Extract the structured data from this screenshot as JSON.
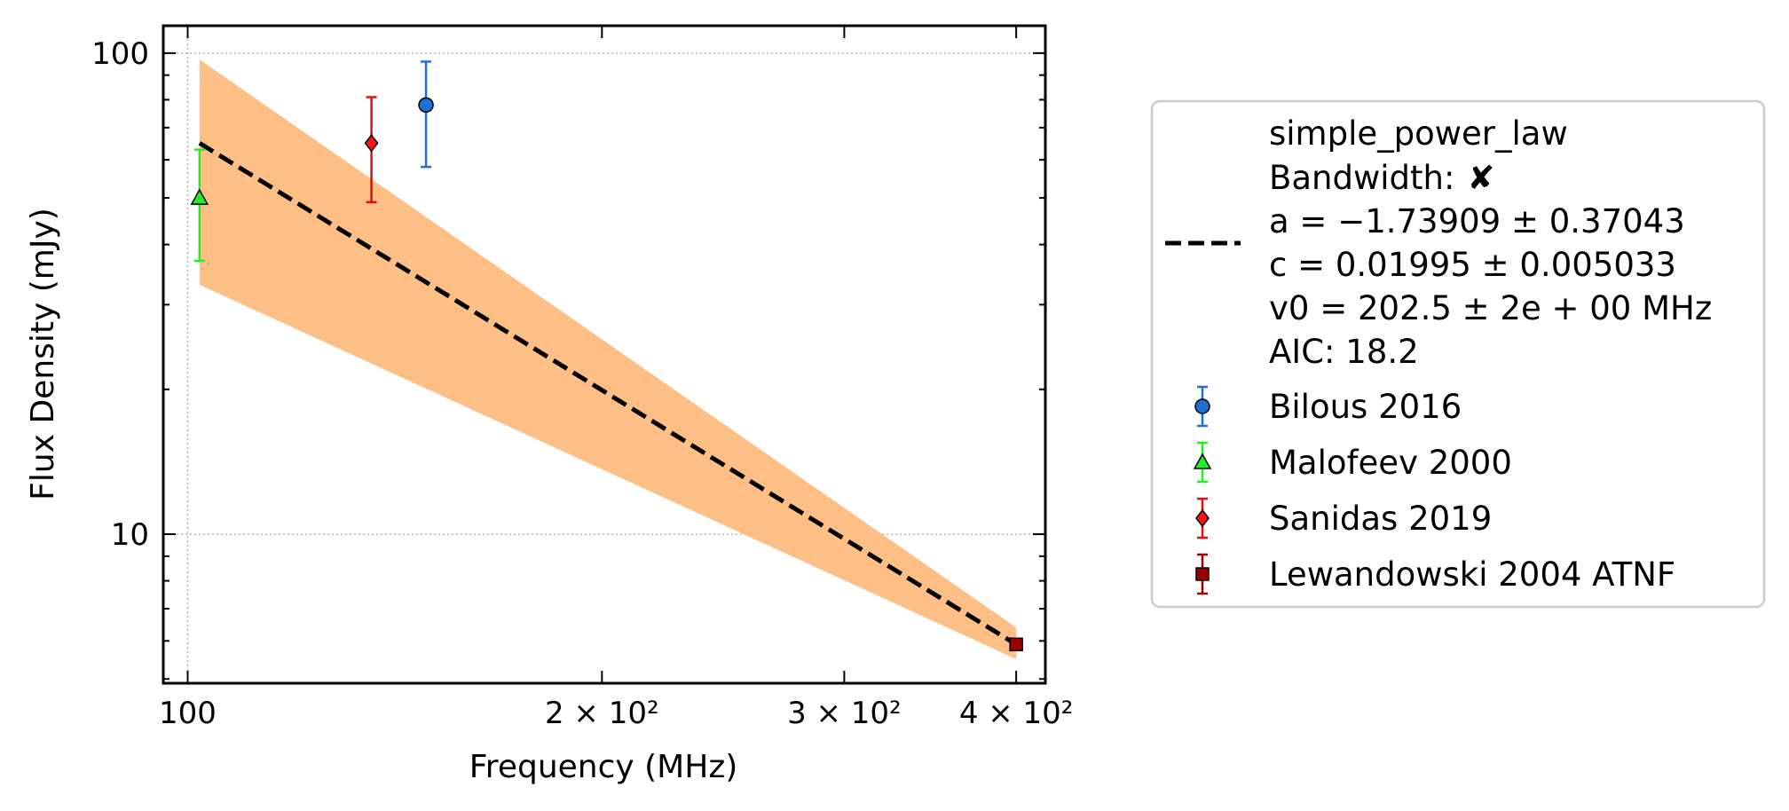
{
  "chart_data": {
    "type": "scatter",
    "xscale": "log",
    "yscale": "log",
    "xlim": [
      96,
      420
    ],
    "ylim": [
      4.9,
      114
    ],
    "xlabel": "Frequency (MHz)",
    "ylabel": "Flux Density (mJy)",
    "grid": true,
    "legend_position": "outside-right",
    "x_ticks": [
      {
        "value": 100,
        "label": "100"
      },
      {
        "value": 200,
        "label": "2 × 10²"
      },
      {
        "value": 300,
        "label": "3 × 10²"
      },
      {
        "value": 400,
        "label": "4 × 10²"
      }
    ],
    "y_ticks": [
      {
        "value": 10,
        "label": "10"
      },
      {
        "value": 100,
        "label": "100"
      }
    ],
    "fit": {
      "model": "simple_power_law",
      "bandwidth_label": "Bandwidth:",
      "bandwidth_mark": "✘",
      "params": [
        "a = −1.73909 ± 0.37043",
        "c = 0.01995 ± 0.005033",
        "v0 = 202.5 ± 2e + 00 MHz",
        "AIC: 18.2"
      ],
      "line_color": "#000000",
      "band_color": "#fdbf85",
      "line": [
        [
          102,
          65
        ],
        [
          400,
          5.9
        ]
      ],
      "band_upper": [
        [
          102,
          97
        ],
        [
          400,
          6.4
        ]
      ],
      "band_lower": [
        [
          102,
          33
        ],
        [
          400,
          5.5
        ]
      ]
    },
    "series": [
      {
        "name": "Bilous 2016",
        "marker": "circle",
        "color": "#1f6fd6",
        "errcolor": "#1f6fd6",
        "points": [
          {
            "x": 149,
            "y": 78,
            "ylo": 58,
            "yhi": 96
          }
        ]
      },
      {
        "name": "Malofeev 2000",
        "marker": "triangle",
        "color": "#22ee22",
        "errcolor": "#22ee22",
        "points": [
          {
            "x": 102,
            "y": 50,
            "ylo": 37,
            "yhi": 63
          }
        ]
      },
      {
        "name": "Sanidas 2019",
        "marker": "diamond",
        "color": "#ff1111",
        "errcolor": "#e01010",
        "points": [
          {
            "x": 136,
            "y": 65,
            "ylo": 49,
            "yhi": 81
          }
        ]
      },
      {
        "name": "Lewandowski 2004 ATNF",
        "marker": "square",
        "color": "#9b0000",
        "errcolor": "#9b0000",
        "points": [
          {
            "x": 400,
            "y": 5.9,
            "ylo": 5.9,
            "yhi": 5.9
          }
        ]
      }
    ]
  }
}
